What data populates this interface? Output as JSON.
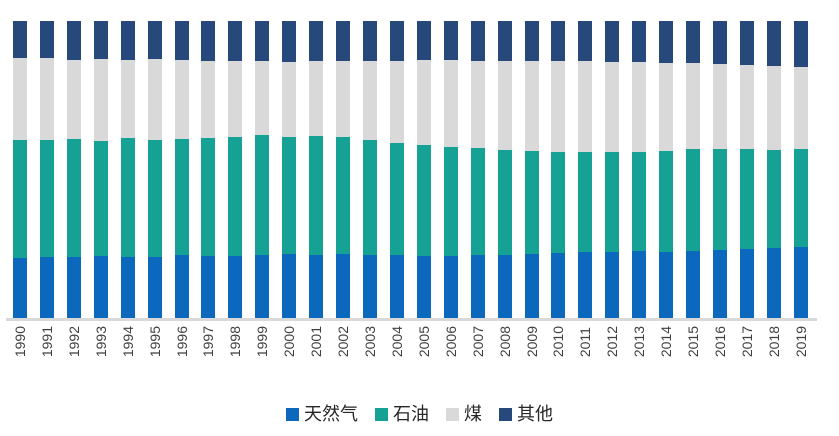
{
  "chart_data": {
    "type": "bar",
    "stacked": true,
    "percent_stacked": true,
    "title": "",
    "xlabel": "",
    "ylabel": "",
    "ylim": [
      0,
      100
    ],
    "grid": false,
    "legend_position": "bottom",
    "axis_line_color": "#D9D9D9",
    "tick_label_color": "#404040",
    "categories": [
      "1990",
      "1991",
      "1992",
      "1993",
      "1994",
      "1995",
      "1996",
      "1997",
      "1998",
      "1999",
      "2000",
      "2001",
      "2002",
      "2003",
      "2004",
      "2005",
      "2006",
      "2007",
      "2008",
      "2009",
      "2010",
      "2011",
      "2012",
      "2013",
      "2014",
      "2015",
      "2016",
      "2017",
      "2018",
      "2019"
    ],
    "series": [
      {
        "name": "天然气",
        "color": "#0C68BC",
        "values": [
          20.1,
          20.4,
          20.5,
          20.8,
          20.4,
          20.6,
          21.2,
          20.9,
          21.0,
          21.2,
          21.4,
          21.2,
          21.5,
          21.2,
          21.3,
          21.0,
          20.8,
          21.1,
          21.3,
          21.4,
          21.8,
          22.1,
          22.3,
          22.6,
          22.1,
          22.7,
          22.9,
          23.1,
          23.7,
          23.9
        ]
      },
      {
        "name": "石油",
        "color": "#15A294",
        "values": [
          39.8,
          39.5,
          39.7,
          38.9,
          40.1,
          39.3,
          39.1,
          39.6,
          40.1,
          40.3,
          39.6,
          40.1,
          39.3,
          38.7,
          37.6,
          37.3,
          36.8,
          36.1,
          35.2,
          34.9,
          34.2,
          33.8,
          33.5,
          33.3,
          34.3,
          34.1,
          33.9,
          33.7,
          32.9,
          32.9
        ]
      },
      {
        "name": "煤",
        "color": "#D9D9D9",
        "values": [
          27.5,
          27.5,
          26.6,
          27.5,
          26.4,
          27.2,
          26.6,
          26.1,
          25.6,
          25.0,
          25.3,
          25.2,
          25.6,
          26.7,
          27.7,
          28.6,
          29.3,
          29.4,
          30.1,
          30.1,
          30.5,
          30.7,
          30.5,
          30.2,
          29.4,
          29.0,
          28.7,
          28.4,
          28.4,
          27.6
        ]
      },
      {
        "name": "其他",
        "color": "#27487B",
        "values": [
          12.6,
          12.6,
          13.2,
          12.8,
          13.1,
          12.9,
          13.1,
          13.4,
          13.3,
          13.5,
          13.7,
          13.5,
          13.6,
          13.4,
          13.4,
          13.1,
          13.1,
          13.4,
          13.4,
          13.6,
          13.5,
          13.4,
          13.7,
          13.9,
          14.2,
          14.2,
          14.5,
          14.8,
          15.0,
          15.6
        ]
      }
    ]
  },
  "legend": {
    "items": [
      {
        "label": "天然气",
        "color": "#0C68BC"
      },
      {
        "label": "石油",
        "color": "#15A294"
      },
      {
        "label": "煤",
        "color": "#D9D9D9"
      },
      {
        "label": "其他",
        "color": "#27487B"
      }
    ]
  }
}
